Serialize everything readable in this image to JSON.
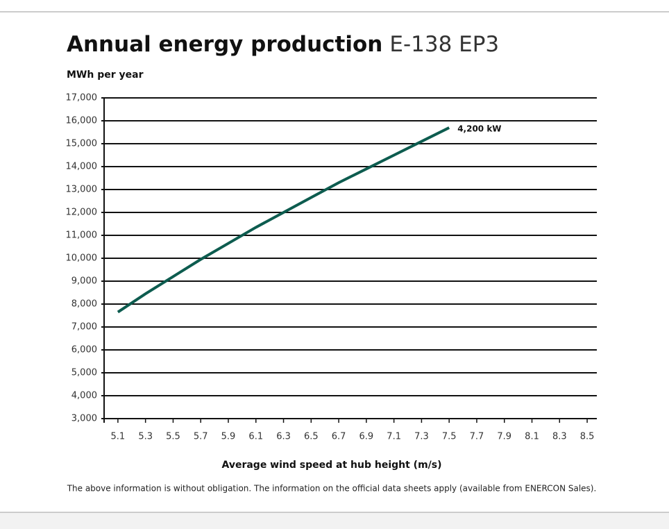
{
  "chart_data": {
    "type": "line",
    "title": "Annual energy production",
    "subtitle": "E-138 EP3",
    "y_label": "MWh per year",
    "x_label": "Average wind speed at hub height (m/s)",
    "footnote": "The above information is without obligation. The information on the official data sheets apply (available from ENERCON Sales).",
    "x": [
      5.1,
      5.3,
      5.5,
      5.7,
      5.9,
      6.1,
      6.3,
      6.5,
      6.7,
      6.9,
      7.1,
      7.3,
      7.5
    ],
    "series": [
      {
        "name": "4,200 kW",
        "color": "#0d5c4f",
        "values": [
          7650,
          8450,
          9200,
          9950,
          10650,
          11350,
          12000,
          12650,
          13300,
          13900,
          14500,
          15100,
          15700
        ]
      }
    ],
    "xlim": [
      5.0,
      8.57
    ],
    "xticks": [
      5.1,
      5.3,
      5.5,
      5.7,
      5.9,
      6.1,
      6.3,
      6.5,
      6.7,
      6.9,
      7.1,
      7.3,
      7.5,
      7.7,
      7.9,
      8.1,
      8.3,
      8.5
    ],
    "ylim": [
      3000,
      17000
    ],
    "yticks": [
      {
        "value": 3000,
        "label": "3,000"
      },
      {
        "value": 4000,
        "label": "4,000"
      },
      {
        "value": 5000,
        "label": "5,000"
      },
      {
        "value": 6000,
        "label": "6,000"
      },
      {
        "value": 7000,
        "label": "7,000"
      },
      {
        "value": 8000,
        "label": "8,000"
      },
      {
        "value": 9000,
        "label": "9,000"
      },
      {
        "value": 10000,
        "label": "10,000"
      },
      {
        "value": 11000,
        "label": "11,000"
      },
      {
        "value": 12000,
        "label": "12,000"
      },
      {
        "value": 13000,
        "label": "13,000"
      },
      {
        "value": 14000,
        "label": "14,000"
      },
      {
        "value": 15000,
        "label": "15,000"
      },
      {
        "value": 16000,
        "label": "16,000"
      },
      {
        "value": 17000,
        "label": "17,000"
      }
    ],
    "grid": true
  }
}
